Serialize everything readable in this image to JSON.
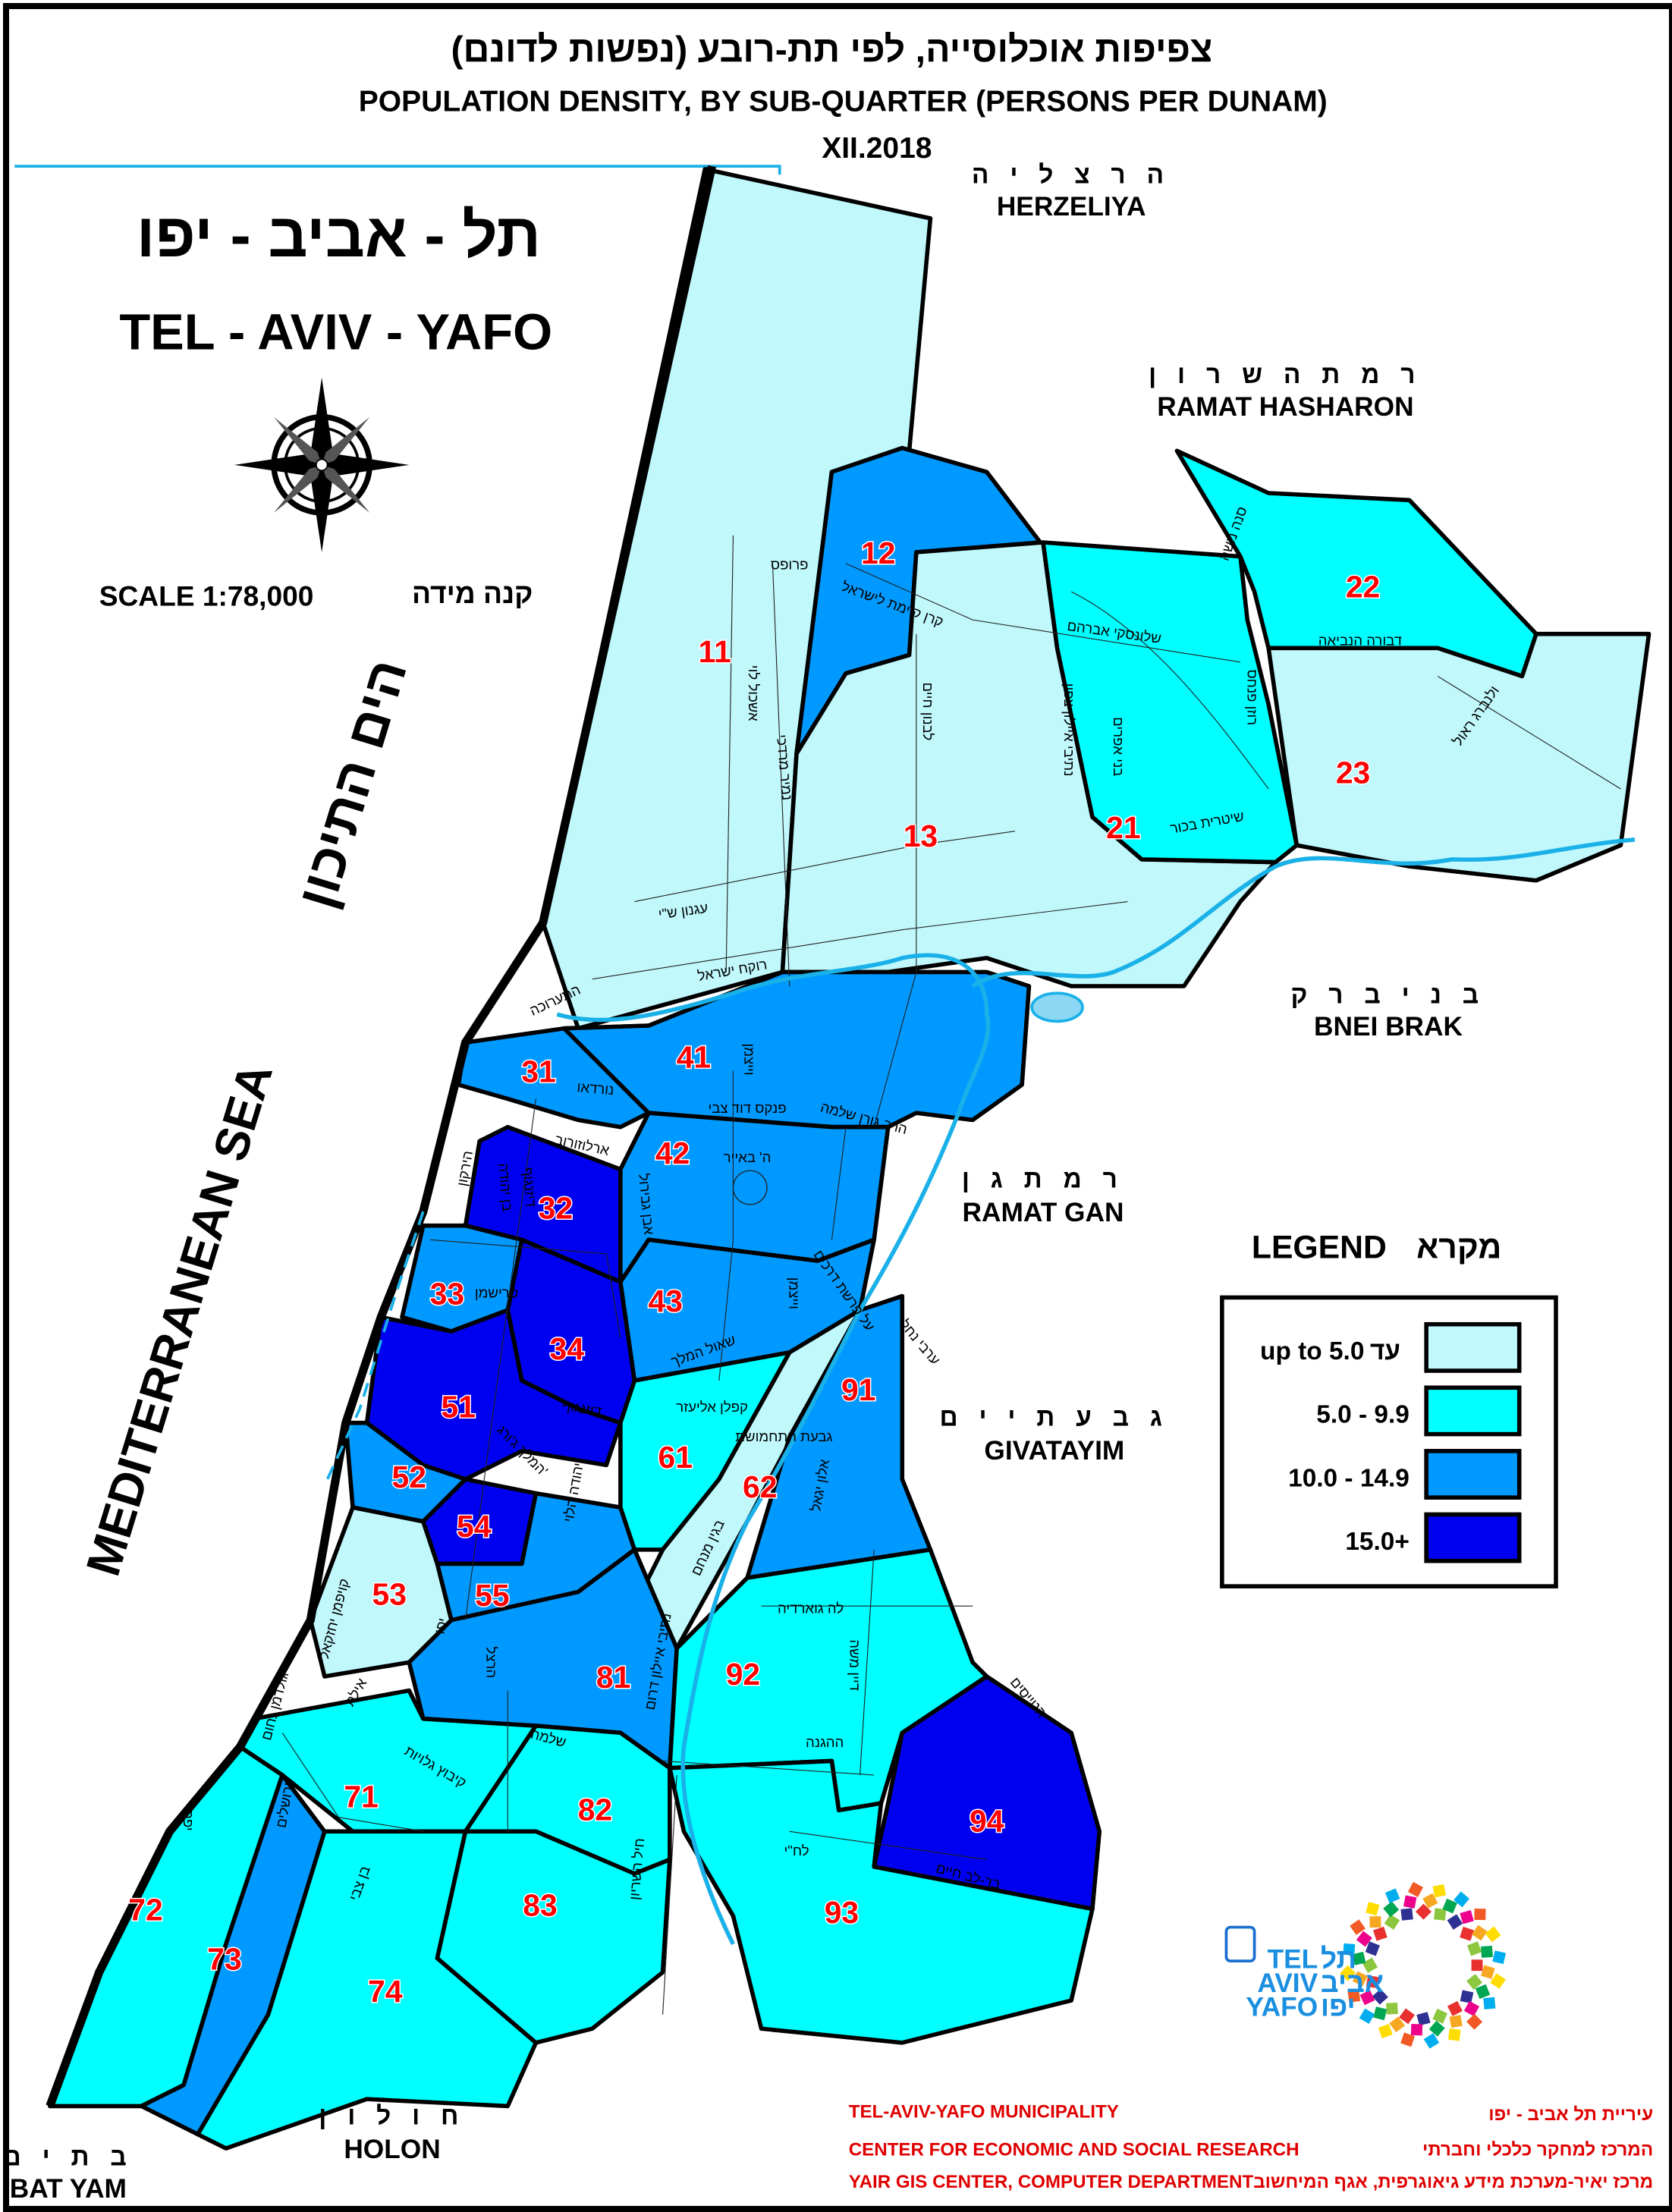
{
  "header": {
    "title_he": "צפיפות אוכלוסייה, לפי תת-רובע (נפשות לדונם)",
    "title_en": "POPULATION DENSITY, BY SUB-QUARTER (PERSONS PER DUNAM)",
    "date": "XII.2018"
  },
  "city": {
    "name_he": "תל - אביב - יפו",
    "name_en": "TEL - AVIV - YAFO",
    "scale_en": "SCALE  1:78,000",
    "scale_he": "קנה מידה"
  },
  "sea": {
    "name_en": "MEDITERRANEAN SEA",
    "name_he": "הים התיכון"
  },
  "neighbors": [
    {
      "he": "ה ר צ ל י ה",
      "en": "HERZELIYA"
    },
    {
      "he": "ר מ ת  ה ש ר ו ן",
      "en": "RAMAT  HASHARON"
    },
    {
      "he": "ב נ י  ב ר ק",
      "en": "BNEI  BRAK"
    },
    {
      "he": "ר מ ת  ג ן",
      "en": "RAMAT  GAN"
    },
    {
      "he": "ג ב ע ת י י ם",
      "en": "GIVATAYIM"
    },
    {
      "he": "ח ו ל ו ן",
      "en": "HOLON"
    },
    {
      "he": "ב ת  י ם",
      "en": "BAT  YAM"
    }
  ],
  "legend": {
    "title_en": "LEGEND",
    "title_he": "מקרא",
    "classes": [
      {
        "label": "up to 5.0",
        "label_he": "עד",
        "color": "#c0f8fc"
      },
      {
        "label": "5.0 - 9.9",
        "label_he": "",
        "color": "#00ffff"
      },
      {
        "label": "10.0 - 14.9",
        "label_he": "",
        "color": "#0099ff"
      },
      {
        "label": "15.0+",
        "label_he": "",
        "color": "#0000f0"
      }
    ]
  },
  "sub_quarters": [
    {
      "id": "11",
      "class": 0
    },
    {
      "id": "12",
      "class": 2
    },
    {
      "id": "13",
      "class": 0
    },
    {
      "id": "21",
      "class": 1
    },
    {
      "id": "22",
      "class": 1
    },
    {
      "id": "23",
      "class": 0
    },
    {
      "id": "31",
      "class": 2
    },
    {
      "id": "32",
      "class": 3
    },
    {
      "id": "33",
      "class": 2
    },
    {
      "id": "34",
      "class": 3
    },
    {
      "id": "41",
      "class": 2
    },
    {
      "id": "42",
      "class": 2
    },
    {
      "id": "43",
      "class": 2
    },
    {
      "id": "51",
      "class": 3
    },
    {
      "id": "52",
      "class": 2
    },
    {
      "id": "53",
      "class": 0
    },
    {
      "id": "54",
      "class": 3
    },
    {
      "id": "55",
      "class": 2
    },
    {
      "id": "61",
      "class": 1
    },
    {
      "id": "62",
      "class": 0
    },
    {
      "id": "71",
      "class": 1
    },
    {
      "id": "72",
      "class": 1
    },
    {
      "id": "73",
      "class": 2
    },
    {
      "id": "74",
      "class": 1
    },
    {
      "id": "81",
      "class": 2
    },
    {
      "id": "82",
      "class": 1
    },
    {
      "id": "83",
      "class": 1
    },
    {
      "id": "91",
      "class": 2
    },
    {
      "id": "92",
      "class": 1
    },
    {
      "id": "93",
      "class": 1
    },
    {
      "id": "94",
      "class": 3
    }
  ],
  "streets": [
    "פרופס",
    "קרן קיימת לישראל",
    "אשכול לוי",
    "נמיר מרדכי",
    "לבנון חיים",
    "שלונסקי אברהם",
    "נתיבי איילון צפון",
    "בני אפרים",
    "רוזן פנחס",
    "דבורה הנביאה",
    "סנה משה",
    "ולנברג ראול",
    "שיטרית בכור",
    "עגנון ש\"י",
    "רוקח ישראל",
    "התערוכה",
    "נורדאו",
    "פנקס דוד צבי",
    "וייצמן",
    "הרב גורן שלמה",
    "הירקון",
    "בן יהודה",
    "דיזנגוף",
    "ארלוזורוב",
    "אבן גבירול",
    "ה' באייר",
    "וייצמן",
    "על פרשת דרכים",
    "ערבי נחל",
    "פרישמן",
    "שאול המלך",
    "קפלן אליעזר",
    "דיזנגוף",
    "המלך ג'ורג'",
    "בגין מנחם",
    "יהודה הלוי",
    "אלון יגאל",
    "גבעת התחמושת",
    "קויפמן יחזקאל",
    "אילת",
    "יפו",
    "הרצל",
    "נתיבי איילון דרום",
    "לה גוארדיה",
    "דיין משה",
    "ההגנה",
    "הטייסים",
    "שלמה",
    "גולדמן נחום",
    "ירושלים",
    "קיבוץ גלויות",
    "חיל השריון",
    "לח\"י",
    "בר-לב חיים",
    "בן צבי",
    "יפת"
  ],
  "logo": {
    "he_1": "תל",
    "he_2": "אביב",
    "he_3": "יפו",
    "en_1": "TEL",
    "en_2": "AVIV",
    "en_3": "YAFO"
  },
  "footer": {
    "org_en": "TEL-AVIV-YAFO MUNICIPALITY",
    "org_he": "עיריית תל אביב - יפו",
    "dept_en": "CENTER FOR ECONOMIC AND SOCIAL RESEARCH",
    "dept_he": "המרכז למחקר כלכלי וחברתי",
    "gis_en": "YAIR GIS CENTER, COMPUTER DEPARTMENT",
    "gis_he": "מרכז יאיר-מערכת מידע גיאוגרפית, אגף המיחשוב"
  }
}
